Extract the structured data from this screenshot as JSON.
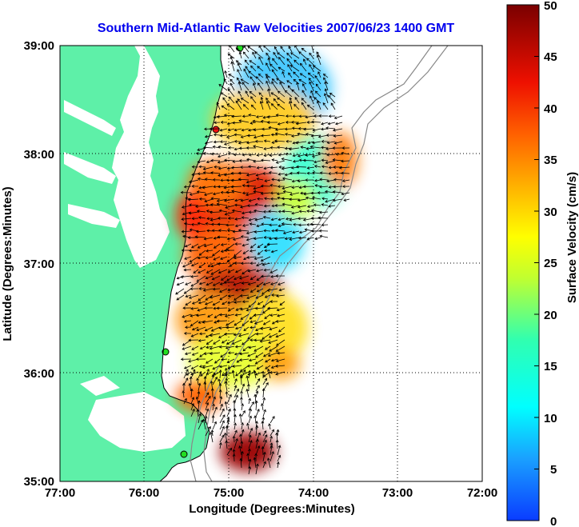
{
  "title": "Southern Mid-Atlantic Raw Velocities 2007/06/23 1400 GMT",
  "x_axis": {
    "label": "Longitude (Degrees:Minutes)",
    "ticks": [
      "77:00",
      "76:00",
      "75:00",
      "74:00",
      "73:00",
      "72:00"
    ]
  },
  "y_axis": {
    "label": "Latitude (Degrees:Minutes)",
    "ticks": [
      "39:00",
      "38:00",
      "37:00",
      "36:00",
      "35:00"
    ]
  },
  "colorbar": {
    "label": "Surface Velocity (cm/s)",
    "ticks": [
      "50",
      "45",
      "40",
      "35",
      "30",
      "25",
      "20",
      "15",
      "10",
      "5",
      "0"
    ],
    "min": 0,
    "max": 50,
    "colormap": "jet"
  },
  "colors": {
    "land": "#5ef0a8",
    "title": "#0000ee",
    "coastline": "#000000",
    "bathymetry": "#888888",
    "station": "#22dd22",
    "station_alt": "#ee1111"
  },
  "chart_data": {
    "type": "vector-field",
    "lon_range": [
      -77,
      -72
    ],
    "lat_range": [
      35,
      39
    ],
    "grid": true
  }
}
